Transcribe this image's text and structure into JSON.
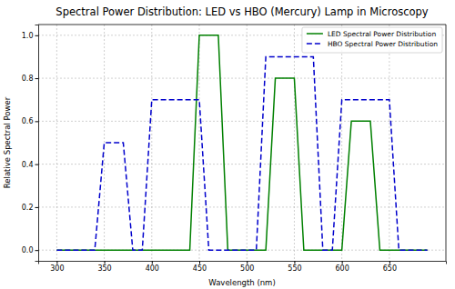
{
  "chart_data": {
    "type": "line",
    "title": "Spectral Power Distribution: LED vs HBO (Mercury) Lamp in Microscopy",
    "x_label": "Wavelength (nm)",
    "y_label": "Relative Spectral Power",
    "x": [
      300,
      310,
      320,
      330,
      340,
      350,
      360,
      370,
      380,
      390,
      400,
      410,
      420,
      430,
      440,
      450,
      460,
      470,
      480,
      490,
      500,
      510,
      520,
      530,
      540,
      550,
      560,
      570,
      580,
      590,
      600,
      610,
      620,
      630,
      640,
      650,
      660,
      670,
      680,
      690
    ],
    "series": [
      {
        "name": "LED Spectral Power Distribution",
        "color": "#008000",
        "line_style": "solid",
        "values": [
          0,
          0,
          0,
          0,
          0,
          0,
          0,
          0,
          0,
          0,
          0,
          0,
          0,
          0,
          0,
          1,
          1,
          1,
          0,
          0,
          0,
          0,
          0,
          0.8,
          0.8,
          0.8,
          0,
          0,
          0,
          0,
          0,
          0.6,
          0.6,
          0.6,
          0,
          0,
          0,
          0,
          0,
          0
        ]
      },
      {
        "name": "HBO Spectral Power Distribution",
        "color": "#0000cc",
        "line_style": "dashed",
        "values": [
          0,
          0,
          0,
          0,
          0,
          0.5,
          0.5,
          0.5,
          0,
          0,
          0.7,
          0.7,
          0.7,
          0.7,
          0.7,
          0.7,
          0,
          0,
          0,
          0,
          0,
          0,
          0.9,
          0.9,
          0.9,
          0.9,
          0.9,
          0.9,
          0,
          0,
          0.7,
          0.7,
          0.7,
          0.7,
          0.7,
          0.7,
          0,
          0,
          0,
          0
        ]
      }
    ],
    "xlim": [
      280.5,
      709.5
    ],
    "xticks": [
      300,
      350,
      400,
      450,
      500,
      550,
      600,
      650
    ],
    "ylim": [
      -0.05,
      1.05
    ],
    "yticks": [
      {
        "value": 0,
        "label": "0.0"
      },
      0.2,
      0.4,
      0.6,
      0.8,
      {
        "value": 1,
        "label": "1.0"
      }
    ],
    "grid": true,
    "legend": "upper right"
  }
}
